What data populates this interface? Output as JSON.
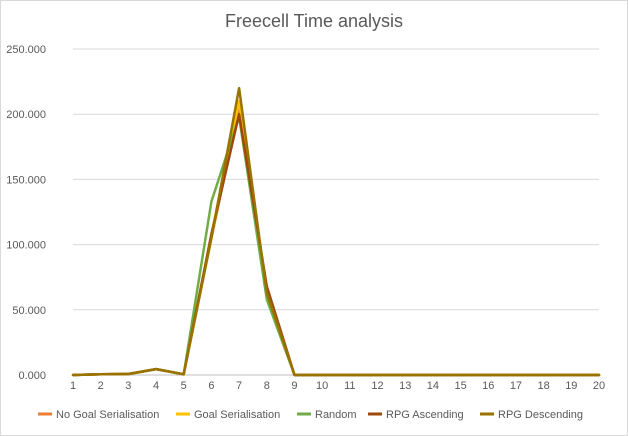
{
  "chart_data": {
    "type": "line",
    "title": "Freecell Time analysis",
    "xlabel": "",
    "ylabel": "",
    "x": [
      1,
      2,
      3,
      4,
      5,
      6,
      7,
      8,
      9,
      10,
      11,
      12,
      13,
      14,
      15,
      16,
      17,
      18,
      19,
      20
    ],
    "ylim": [
      0,
      250000
    ],
    "yticks": [
      0,
      50000,
      100000,
      150000,
      200000,
      250000
    ],
    "ytick_labels": [
      "0.000",
      "50.000",
      "100.000",
      "150.000",
      "200.000",
      "250.000"
    ],
    "grid": true,
    "legend": "bottom",
    "series": [
      {
        "name": "No Goal Serialisation",
        "color": "#ED7D31",
        "values": [
          0,
          500,
          800,
          4500,
          500,
          105000,
          205000,
          62000,
          0,
          0,
          0,
          0,
          0,
          0,
          0,
          0,
          0,
          0,
          0,
          0
        ]
      },
      {
        "name": "Goal Serialisation",
        "color": "#FFC000",
        "values": [
          0,
          500,
          800,
          4500,
          500,
          108000,
          210000,
          63000,
          0,
          0,
          0,
          0,
          0,
          0,
          0,
          0,
          0,
          0,
          0,
          0
        ]
      },
      {
        "name": "Random",
        "color": "#70AD47",
        "values": [
          0,
          500,
          800,
          4500,
          500,
          133000,
          198000,
          58000,
          0,
          0,
          0,
          0,
          0,
          0,
          0,
          0,
          0,
          0,
          0,
          0
        ]
      },
      {
        "name": "RPG Ascending",
        "color": "#9E480E",
        "values": [
          0,
          500,
          800,
          4500,
          500,
          108000,
          200000,
          68000,
          0,
          0,
          0,
          0,
          0,
          0,
          0,
          0,
          0,
          0,
          0,
          0
        ]
      },
      {
        "name": "RPG Descending",
        "color": "#997300",
        "values": [
          0,
          500,
          800,
          4500,
          500,
          105000,
          220000,
          63000,
          0,
          0,
          0,
          0,
          0,
          0,
          0,
          0,
          0,
          0,
          0,
          0
        ]
      }
    ]
  }
}
